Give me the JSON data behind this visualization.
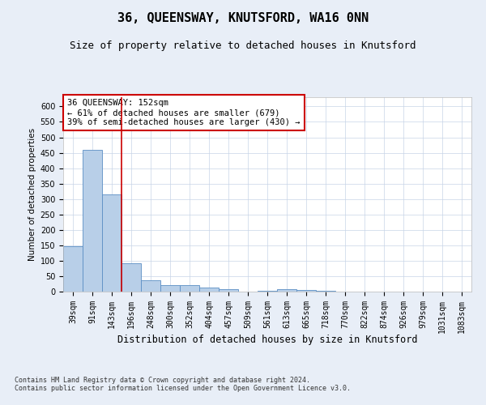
{
  "title": "36, QUEENSWAY, KNUTSFORD, WA16 0NN",
  "subtitle": "Size of property relative to detached houses in Knutsford",
  "xlabel": "Distribution of detached houses by size in Knutsford",
  "ylabel": "Number of detached properties",
  "categories": [
    "39sqm",
    "91sqm",
    "143sqm",
    "196sqm",
    "248sqm",
    "300sqm",
    "352sqm",
    "404sqm",
    "457sqm",
    "509sqm",
    "561sqm",
    "613sqm",
    "665sqm",
    "718sqm",
    "770sqm",
    "822sqm",
    "874sqm",
    "926sqm",
    "979sqm",
    "1031sqm",
    "1083sqm"
  ],
  "values": [
    148,
    460,
    315,
    93,
    37,
    22,
    20,
    12,
    8,
    1,
    2,
    8,
    6,
    2,
    1,
    1,
    1,
    1,
    1,
    1,
    1
  ],
  "bar_color": "#b8cfe8",
  "bar_edge_color": "#5b8ec4",
  "vline_color": "#cc0000",
  "vline_idx": 2,
  "annotation_line1": "36 QUEENSWAY: 152sqm",
  "annotation_line2": "← 61% of detached houses are smaller (679)",
  "annotation_line3": "39% of semi-detached houses are larger (430) →",
  "annotation_box_color": "white",
  "annotation_box_edge": "#cc0000",
  "ylim": [
    0,
    630
  ],
  "yticks": [
    0,
    50,
    100,
    150,
    200,
    250,
    300,
    350,
    400,
    450,
    500,
    550,
    600
  ],
  "background_color": "#e8eef7",
  "plot_bg_color": "#ffffff",
  "grid_color": "#c8d4e8",
  "footer": "Contains HM Land Registry data © Crown copyright and database right 2024.\nContains public sector information licensed under the Open Government Licence v3.0.",
  "title_fontsize": 11,
  "subtitle_fontsize": 9,
  "xlabel_fontsize": 8.5,
  "ylabel_fontsize": 7.5,
  "tick_fontsize": 7,
  "annotation_fontsize": 7.5,
  "footer_fontsize": 6
}
